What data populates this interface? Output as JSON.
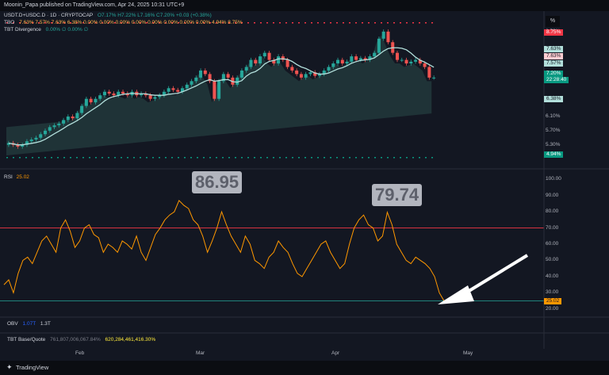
{
  "header": {
    "published": "Moonin_Papa published on TradingView.com, Apr 24, 2025 10:31 UTC+9"
  },
  "main_legend": {
    "symbol": "USDT.D+USDC.D · 1D · CRYPTOCAP",
    "ohlc": "O7.17% H7.22% L7.16% C7.20% +0.03 (+0.38%)",
    "tbo_label": "TBO",
    "tbo_values": "7.63% 7.57% 7.63% 6.38% 0.00% 0.00% 0.00% 0.00% 0.00% 0.00% 0.00% 0.00% 4.94% 8.75%",
    "divergence_label": "TBT Divergence",
    "divergence_values": "0.00% ∅ 0.00% ∅"
  },
  "right_scale": {
    "unit": "%",
    "ticks": [
      "8.50%",
      "6.10%",
      "5.70%",
      "5.30%"
    ],
    "tags": [
      {
        "text": "8.75%",
        "color": "#f23645"
      },
      {
        "text": "7.63%",
        "color": "#b2dfdb"
      },
      {
        "text": "7.63%",
        "color": "#ffcdd2"
      },
      {
        "text": "7.57%",
        "color": "#b2dfdb"
      },
      {
        "text": "7.20%",
        "color": "#089981"
      },
      {
        "text": "22:28:40",
        "color": "#089981"
      },
      {
        "text": "6.38%",
        "color": "#b2dfdb"
      },
      {
        "text": "4.94%",
        "color": "#089981"
      }
    ]
  },
  "rsi_panel": {
    "label": "RSI",
    "value": "25.02",
    "ticks": [
      "100.00",
      "90.00",
      "80.00",
      "70.00",
      "60.00",
      "50.00",
      "40.00",
      "30.00",
      "20.00"
    ],
    "tag": "25.02",
    "peak_1": "86.95",
    "peak_2": "79.74"
  },
  "obv_panel": {
    "label": "OBV",
    "value_1": "1.07T",
    "value_2": "1.3T"
  },
  "base_quote_panel": {
    "label": "TBT Base/Quote",
    "value_1": "761,807,006,067.84%",
    "value_2": "620,284,461,416.30%"
  },
  "time_axis": [
    "Feb",
    "Mar",
    "Apr",
    "May"
  ],
  "brand": "TradingView",
  "chart_data": [
    {
      "type": "candlestick",
      "title": "USDT.D+USDC.D · 1D · CRYPTOCAP",
      "ylim": [
        4.8,
        8.9
      ],
      "resistance": 8.75,
      "support": 4.94,
      "close_series": [
        5.35,
        5.3,
        5.25,
        5.3,
        5.4,
        5.45,
        5.5,
        5.6,
        5.7,
        5.8,
        5.85,
        5.9,
        6.0,
        6.1,
        6.05,
        6.2,
        6.4,
        6.6,
        6.5,
        6.6,
        6.7,
        6.8,
        6.75,
        6.7,
        6.8,
        6.75,
        6.7,
        6.8,
        6.7,
        6.75,
        6.7,
        6.6,
        6.65,
        6.7,
        6.8,
        6.9,
        6.85,
        6.8,
        6.9,
        7.0,
        7.1,
        7.2,
        7.4,
        7.3,
        7.1,
        6.6,
        7.1,
        7.3,
        7.2,
        7.0,
        7.2,
        7.4,
        7.5,
        7.7,
        7.6,
        7.8,
        7.9,
        7.7,
        7.6,
        7.8,
        7.7,
        7.5,
        7.4,
        7.3,
        7.2,
        7.3,
        7.35,
        7.25,
        7.3,
        7.4,
        7.5,
        7.6,
        7.7,
        7.6,
        7.65,
        7.8,
        7.7,
        7.75,
        7.7,
        7.8,
        7.9,
        8.3,
        8.5,
        8.2,
        7.9,
        7.7,
        7.7,
        7.6,
        7.65,
        7.7,
        7.6,
        7.5,
        7.2,
        7.2
      ]
    },
    {
      "type": "line",
      "title": "RSI",
      "ylim": [
        15,
        105
      ],
      "levels": [
        70,
        25.02
      ],
      "values": [
        35,
        38,
        30,
        42,
        50,
        52,
        48,
        55,
        62,
        65,
        60,
        55,
        70,
        75,
        68,
        58,
        62,
        70,
        72,
        66,
        64,
        55,
        60,
        58,
        55,
        62,
        60,
        57,
        65,
        55,
        50,
        58,
        66,
        70,
        75,
        78,
        80,
        86.95,
        84,
        82,
        75,
        72,
        65,
        55,
        62,
        70,
        80,
        72,
        65,
        60,
        55,
        65,
        60,
        50,
        48,
        45,
        52,
        55,
        62,
        58,
        55,
        48,
        42,
        40,
        45,
        50,
        55,
        60,
        62,
        55,
        50,
        45,
        48,
        60,
        70,
        75,
        78,
        72,
        70,
        62,
        65,
        79.74,
        72,
        60,
        55,
        50,
        48,
        52,
        50,
        48,
        45,
        40,
        30,
        25.02
      ]
    }
  ],
  "colors": {
    "up": "#26a69a",
    "down": "#ef5350",
    "rsi_line": "#ff9800",
    "resistance": "#f23645",
    "support": "#089981"
  }
}
